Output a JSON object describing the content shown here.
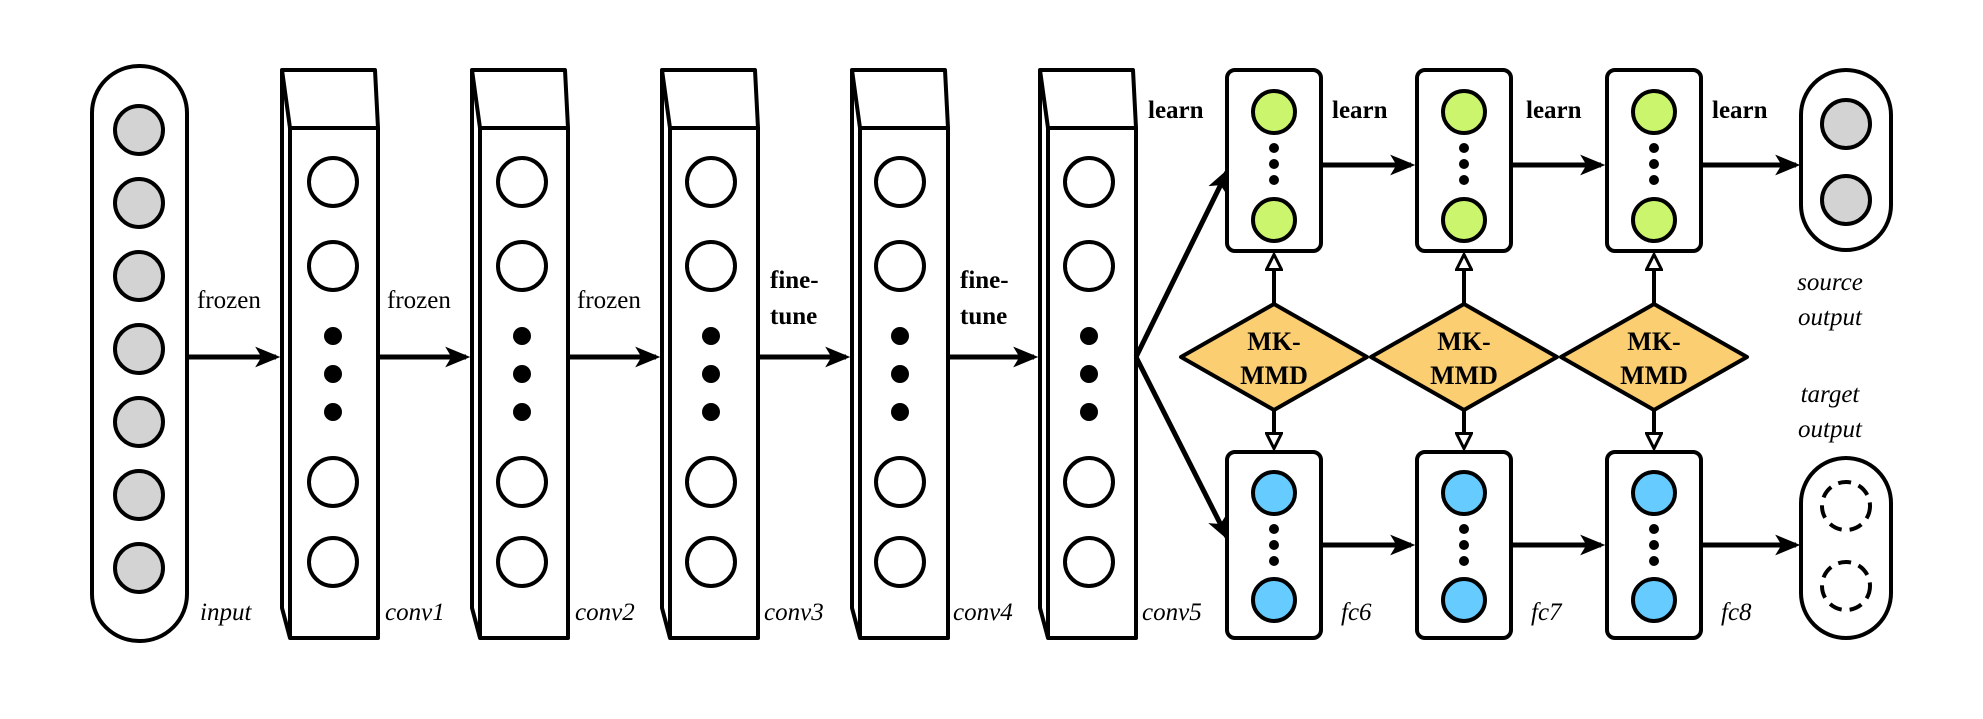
{
  "layers": {
    "input": "input",
    "conv1": "conv1",
    "conv2": "conv2",
    "conv3": "conv3",
    "conv4": "conv4",
    "conv5": "conv5",
    "fc6": "fc6",
    "fc7": "fc7",
    "fc8": "fc8"
  },
  "transitions": {
    "t1": "frozen",
    "t2": "frozen",
    "t3": "frozen",
    "t4_line1": "fine-",
    "t4_line2": "tune",
    "t5_line1": "fine-",
    "t5_line2": "tune"
  },
  "learn_labels": [
    "learn",
    "learn",
    "learn",
    "learn"
  ],
  "mmd_labels": [
    {
      "line1": "MK-",
      "line2": "MMD"
    },
    {
      "line1": "MK-",
      "line2": "MMD"
    },
    {
      "line1": "MK-",
      "line2": "MMD"
    }
  ],
  "outputs": {
    "source_line1": "source",
    "source_line2": "output",
    "target_line1": "target",
    "target_line2": "output"
  },
  "colors": {
    "input_node": "#d3d3d3",
    "source_node": "#ccf56e",
    "target_node": "#66ccff",
    "mmd_fill": "#fcce72",
    "stroke": "#000000"
  }
}
